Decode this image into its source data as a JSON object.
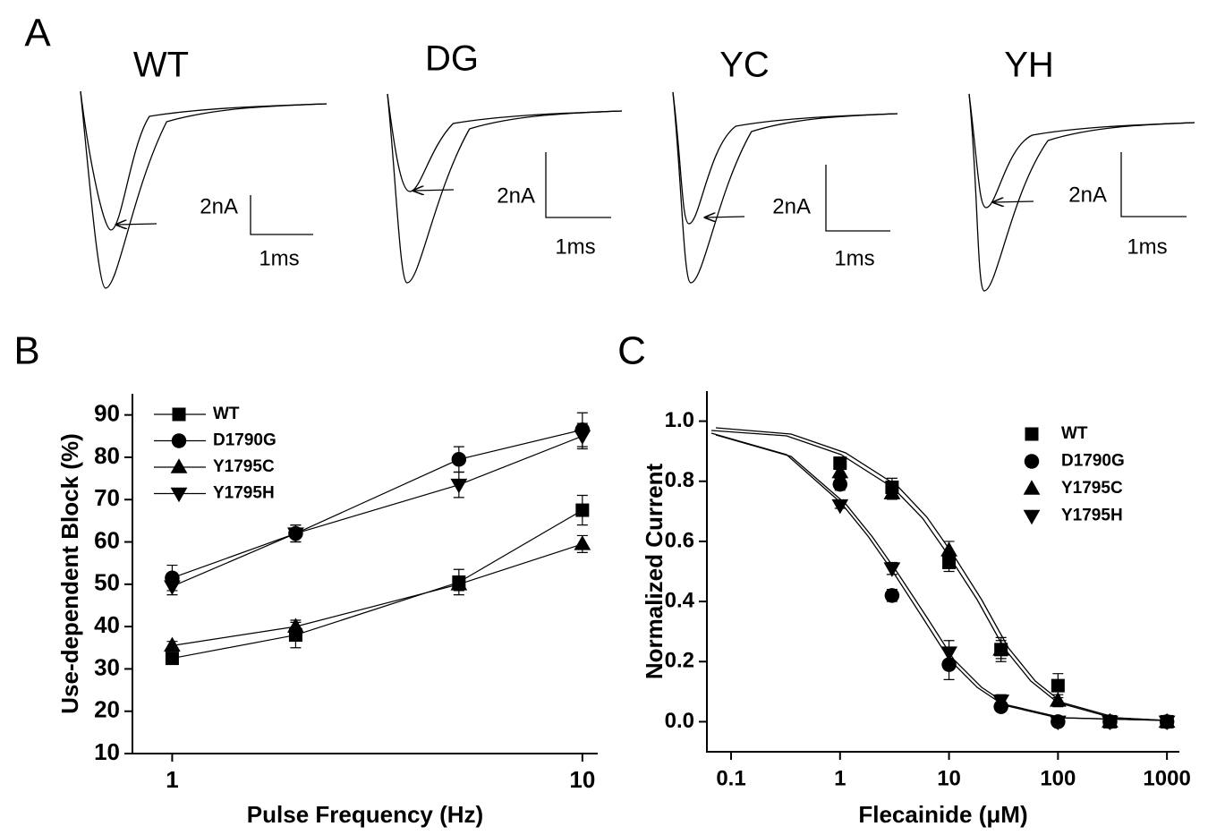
{
  "panel_a": {
    "label": "A",
    "traces": [
      {
        "title": "WT",
        "current_scale": "2nA",
        "time_scale": "1ms"
      },
      {
        "title": "DG",
        "current_scale": "2nA",
        "time_scale": "1ms"
      },
      {
        "title": "YC",
        "current_scale": "2nA",
        "time_scale": "1ms"
      },
      {
        "title": "YH",
        "current_scale": "2nA",
        "time_scale": "1ms"
      }
    ]
  },
  "chart_data": [
    {
      "type": "line",
      "panel_label": "B",
      "xlabel": "Pulse Frequency (Hz)",
      "ylabel": "Use-dependent Block (%)",
      "xlog": true,
      "xlim": [
        0.8,
        10.9
      ],
      "xticks": [
        1,
        10
      ],
      "ylim": [
        10,
        95
      ],
      "yticks": [
        10,
        20,
        30,
        40,
        50,
        60,
        70,
        80,
        90
      ],
      "x": [
        1,
        2,
        5,
        10
      ],
      "series": [
        {
          "name": "WT",
          "color": "#000000",
          "marker": "square",
          "values": [
            32.5,
            38,
            50.5,
            67.5
          ],
          "errors": [
            1,
            3,
            3,
            3.5
          ]
        },
        {
          "name": "D1790G",
          "color": "#000000",
          "marker": "circle",
          "values": [
            51.5,
            62,
            79.5,
            86.5
          ],
          "errors": [
            3,
            2,
            3,
            4
          ]
        },
        {
          "name": "Y1795C",
          "color": "#000000",
          "marker": "triangle-up",
          "values": [
            35.5,
            40,
            50,
            59.5
          ],
          "errors": [
            1,
            1.5,
            1.5,
            2
          ]
        },
        {
          "name": "Y1795H",
          "color": "#000000",
          "marker": "triangle-down",
          "values": [
            49.5,
            62,
            73.5,
            85
          ],
          "errors": [
            2,
            2,
            3,
            3
          ]
        }
      ]
    },
    {
      "type": "scatter",
      "panel_label": "C",
      "xlabel": "Flecainide (μM)",
      "ylabel": "Normalized Current",
      "xlog": true,
      "xlim": [
        0.06,
        1300
      ],
      "xticks": [
        0.1,
        1,
        10,
        100,
        1000
      ],
      "ylim": [
        -0.1,
        1.1
      ],
      "yticks": [
        {
          "value": 0,
          "label": "0.0"
        },
        0.2,
        0.4,
        0.6,
        0.8,
        {
          "value": 1,
          "label": "1.0"
        }
      ],
      "x": [
        1,
        3,
        10,
        30,
        100,
        300,
        1000
      ],
      "series": [
        {
          "name": "WT",
          "color": "#000000",
          "marker": "square",
          "values": [
            0.86,
            0.78,
            0.53,
            0.24,
            0.12,
            0.0,
            0.0
          ],
          "errors": [
            0.02,
            0.03,
            0.03,
            0.04,
            0.04,
            0.01,
            0.01
          ]
        },
        {
          "name": "D1790G",
          "color": "#000000",
          "marker": "circle",
          "values": [
            0.79,
            0.42,
            0.19,
            0.05,
            0.0,
            0.0,
            0.0
          ],
          "errors": [
            0.02,
            0.02,
            0.05,
            0.01,
            0.01,
            0.01,
            0.01
          ]
        },
        {
          "name": "Y1795C",
          "color": "#000000",
          "marker": "triangle-up",
          "values": [
            0.83,
            0.76,
            0.57,
            0.24,
            0.07,
            0.0,
            0.0
          ],
          "errors": [
            0.02,
            0.02,
            0.03,
            0.03,
            0.02,
            0.01,
            0.01
          ]
        },
        {
          "name": "Y1795H",
          "color": "#000000",
          "marker": "triangle-down",
          "values": [
            0.72,
            0.51,
            0.23,
            0.07,
            0.0,
            0.0,
            0.0
          ],
          "errors": [
            0.01,
            0.02,
            0.04,
            0.02,
            0.01,
            0.01,
            0.01
          ]
        }
      ]
    }
  ]
}
